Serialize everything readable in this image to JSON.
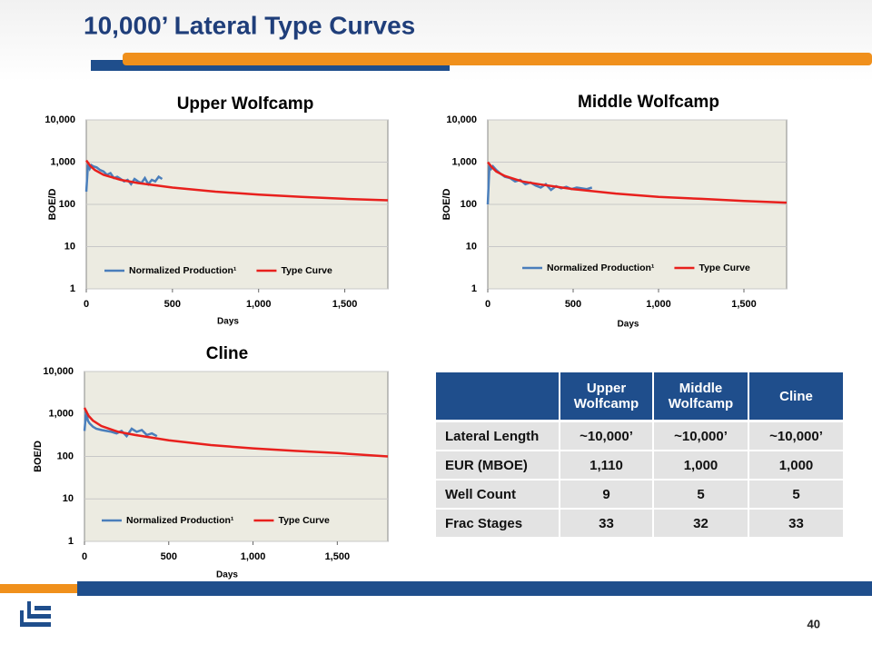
{
  "title": "10,000’ Lateral Type Curves",
  "page_number": "40",
  "chart_data": [
    {
      "type": "line",
      "title": "Upper Wolfcamp",
      "x_label": "Days",
      "y_label": "BOE/D",
      "log_y": true,
      "grid": true,
      "legend": "bottom",
      "xlim": [
        0,
        1750
      ],
      "xticks": [
        0,
        500,
        {
          "value": 1000,
          "label": "1,000"
        },
        {
          "value": 1500,
          "label": "1,500"
        }
      ],
      "ylim": [
        1,
        10000
      ],
      "yticks": [
        {
          "value": 10000,
          "label": "10,000"
        },
        {
          "value": 1000,
          "label": "1,000"
        },
        100,
        10,
        1
      ],
      "series": [
        {
          "name": "Normalized Production¹",
          "color": "#4a7ebb",
          "x": [
            0,
            10,
            20,
            30,
            40,
            60,
            80,
            100,
            120,
            140,
            160,
            180,
            200,
            220,
            240,
            260,
            280,
            300,
            320,
            340,
            360,
            380,
            400,
            420,
            440
          ],
          "values": [
            200,
            900,
            700,
            850,
            800,
            750,
            650,
            600,
            500,
            550,
            420,
            450,
            400,
            350,
            380,
            300,
            400,
            350,
            320,
            420,
            300,
            380,
            350,
            450,
            400
          ]
        },
        {
          "name": "Type Curve",
          "color": "#e8201d",
          "x": [
            0,
            25,
            50,
            100,
            200,
            300,
            500,
            750,
            1000,
            1250,
            1500,
            1750
          ],
          "values": [
            1100,
            800,
            650,
            500,
            380,
            320,
            250,
            200,
            170,
            150,
            135,
            125
          ]
        }
      ]
    },
    {
      "type": "line",
      "title": "Middle Wolfcamp",
      "x_label": "Days",
      "y_label": "BOE/D",
      "log_y": true,
      "grid": true,
      "legend": "bottom",
      "xlim": [
        0,
        1750
      ],
      "xticks": [
        0,
        500,
        {
          "value": 1000,
          "label": "1,000"
        },
        {
          "value": 1500,
          "label": "1,500"
        }
      ],
      "ylim": [
        1,
        10000
      ],
      "yticks": [
        {
          "value": 10000,
          "label": "10,000"
        },
        {
          "value": 1000,
          "label": "1,000"
        },
        100,
        10,
        1
      ],
      "series": [
        {
          "name": "Normalized Production¹",
          "color": "#4a7ebb",
          "x": [
            0,
            10,
            20,
            30,
            50,
            70,
            100,
            130,
            160,
            190,
            220,
            250,
            280,
            310,
            340,
            370,
            400,
            430,
            460,
            490,
            520,
            550,
            580,
            610
          ],
          "values": [
            100,
            900,
            700,
            800,
            650,
            550,
            450,
            420,
            350,
            380,
            300,
            330,
            280,
            250,
            300,
            220,
            270,
            240,
            260,
            230,
            250,
            240,
            230,
            250
          ]
        },
        {
          "name": "Type Curve",
          "color": "#e8201d",
          "x": [
            0,
            25,
            50,
            100,
            200,
            300,
            500,
            750,
            1000,
            1250,
            1500,
            1750
          ],
          "values": [
            1000,
            750,
            600,
            470,
            350,
            300,
            230,
            180,
            150,
            135,
            120,
            110
          ]
        }
      ]
    },
    {
      "type": "line",
      "title": "Cline",
      "x_label": "Days",
      "y_label": "BOE/D",
      "log_y": true,
      "grid": true,
      "legend": "bottom",
      "xlim": [
        0,
        1800
      ],
      "xticks": [
        0,
        500,
        {
          "value": 1000,
          "label": "1,000"
        },
        {
          "value": 1500,
          "label": "1,500"
        }
      ],
      "ylim": [
        1,
        10000
      ],
      "yticks": [
        {
          "value": 10000,
          "label": "10,000"
        },
        {
          "value": 1000,
          "label": "1,000"
        },
        100,
        10,
        1
      ],
      "series": [
        {
          "name": "Normalized Production¹",
          "color": "#4a7ebb",
          "x": [
            0,
            10,
            20,
            30,
            50,
            70,
            100,
            130,
            160,
            190,
            220,
            250,
            280,
            310,
            340,
            370,
            400,
            430
          ],
          "values": [
            400,
            1200,
            700,
            600,
            500,
            450,
            420,
            400,
            380,
            350,
            400,
            300,
            450,
            380,
            420,
            320,
            350,
            300
          ]
        },
        {
          "name": "Type Curve",
          "color": "#e8201d",
          "x": [
            0,
            25,
            50,
            100,
            200,
            300,
            500,
            750,
            1000,
            1250,
            1500,
            1800
          ],
          "values": [
            1400,
            900,
            700,
            520,
            380,
            320,
            240,
            185,
            155,
            135,
            120,
            100
          ]
        }
      ]
    }
  ],
  "table": {
    "columns": [
      "Upper Wolfcamp",
      "Middle Wolfcamp",
      "Cline"
    ],
    "rows": [
      {
        "label": "Lateral Length",
        "cells": [
          "~10,000’",
          "~10,000’",
          "~10,000’"
        ]
      },
      {
        "label": "EUR (MBOE)",
        "cells": [
          "1,110",
          "1,000",
          "1,000"
        ]
      },
      {
        "label": "Well Count",
        "cells": [
          "9",
          "5",
          "5"
        ]
      },
      {
        "label": "Frac Stages",
        "cells": [
          "33",
          "32",
          "33"
        ]
      }
    ]
  }
}
